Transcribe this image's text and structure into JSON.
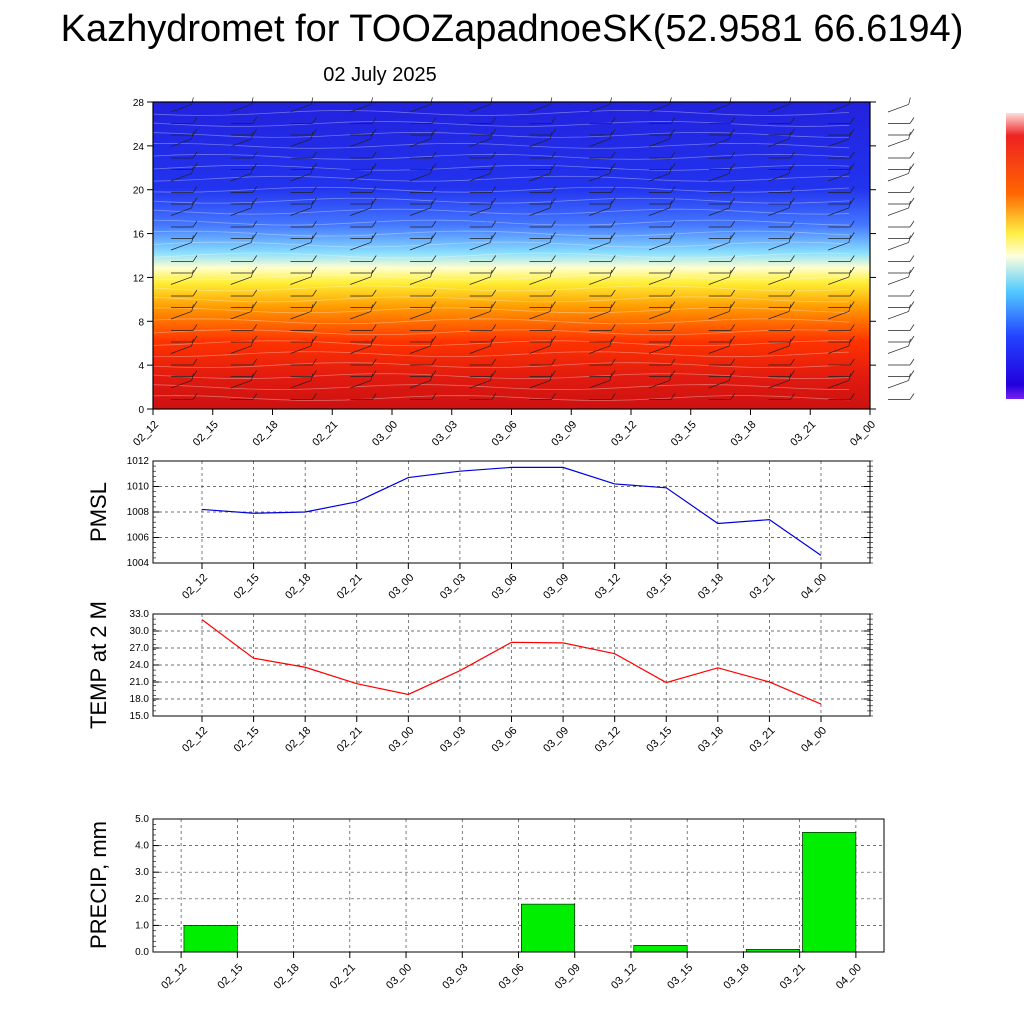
{
  "header": {
    "title": "Kazhydromet for TOOZapadnoeSK(52.9581 66.6194)",
    "subtitle": "02 July 2025"
  },
  "chart_data": [
    {
      "id": "cross-section",
      "type": "heatmap",
      "x_ticks": [
        "02_12",
        "02_15",
        "02_18",
        "02_21",
        "03_00",
        "03_03",
        "03_06",
        "03_09",
        "03_12",
        "03_15",
        "03_18",
        "03_21",
        "04_00"
      ],
      "y_ticks": [
        0,
        4,
        8,
        12,
        16,
        20,
        24,
        28
      ],
      "ylim": [
        0,
        28
      ],
      "colorbar": "white-red-orange-yellow-cyan-blue-purple",
      "wind_barbs": true
    },
    {
      "id": "pmsl",
      "type": "line",
      "ylabel": "PMSL",
      "categories": [
        "02_12",
        "02_15",
        "02_18",
        "02_21",
        "03_00",
        "03_03",
        "03_06",
        "03_09",
        "03_12",
        "03_15",
        "03_18",
        "03_21",
        "04_00"
      ],
      "values": [
        1008.2,
        1007.9,
        1008.0,
        1008.8,
        1010.7,
        1011.2,
        1011.5,
        1011.5,
        1010.2,
        1009.9,
        1007.1,
        1007.4,
        1004.6
      ],
      "ylim": [
        1004,
        1012
      ],
      "y_ticks": [
        "1004",
        "1006",
        "1008",
        "1010",
        "1012"
      ],
      "color": "#0000dd",
      "grid": true
    },
    {
      "id": "temp",
      "type": "line",
      "ylabel": "TEMP at 2 M",
      "categories": [
        "02_12",
        "02_15",
        "02_18",
        "02_21",
        "03_00",
        "03_03",
        "03_06",
        "03_09",
        "03_12",
        "03_15",
        "03_18",
        "03_21",
        "04_00"
      ],
      "values": [
        32.0,
        25.2,
        23.6,
        20.7,
        18.8,
        23.0,
        28.0,
        27.9,
        26.0,
        20.9,
        23.5,
        21.0,
        17.1
      ],
      "ylim": [
        15.0,
        33.0
      ],
      "y_ticks": [
        "15.0",
        "18.0",
        "21.0",
        "24.0",
        "27.0",
        "30.0",
        "33.0"
      ],
      "color": "#ff0000",
      "grid": true
    },
    {
      "id": "precip",
      "type": "bar",
      "ylabel": "PRECIP, mm",
      "categories": [
        "02_12",
        "02_15",
        "02_18",
        "02_21",
        "03_00",
        "03_03",
        "03_06",
        "03_09",
        "03_12",
        "03_15",
        "03_18",
        "03_21",
        "04_00"
      ],
      "values": [
        0,
        1.0,
        0,
        0,
        0,
        0,
        0,
        1.8,
        0,
        0.25,
        0,
        0.1,
        4.5
      ],
      "ylim": [
        0,
        5.0
      ],
      "y_ticks": [
        "0.0",
        "1.0",
        "2.0",
        "3.0",
        "4.0",
        "5.0"
      ],
      "color": "#00ee00",
      "grid": true
    }
  ]
}
